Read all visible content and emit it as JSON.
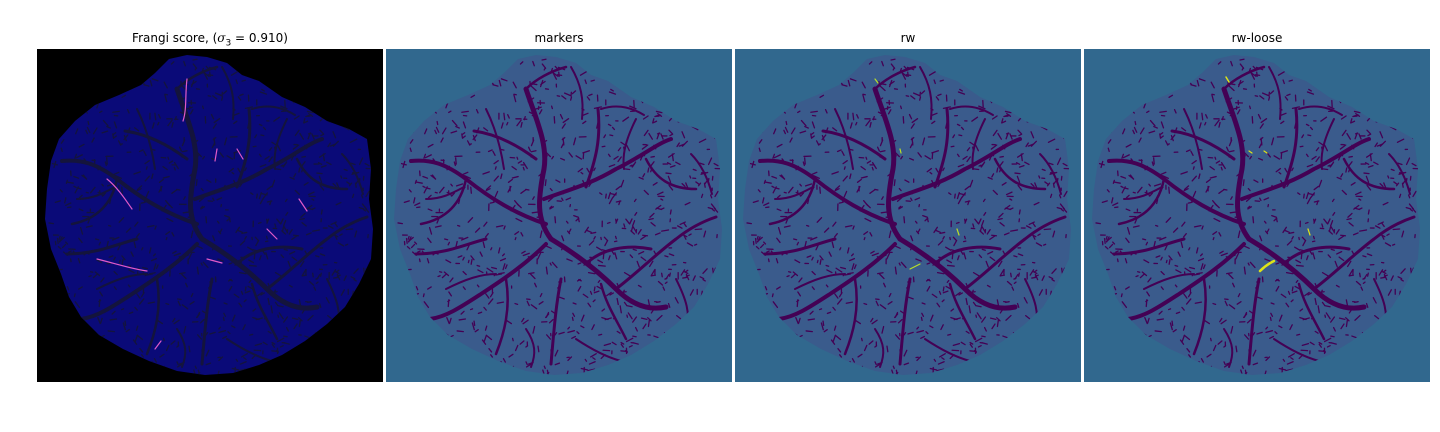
{
  "figure": {
    "panels": [
      {
        "title_prefix": "Frangi score, (",
        "title_sigma": "σ",
        "title_sub": "3",
        "title_suffix": " = 0.910)",
        "colormap": "magma",
        "background": "#000000",
        "body_fill": "#0a0a78",
        "vessel_color": "#14143c",
        "highlight_color": "#e05ac8"
      },
      {
        "title": "markers",
        "colormap": "viridis",
        "background": "#31688e",
        "body_fill": "#3a5b8c",
        "vessel_color": "#440154",
        "highlight_color": ""
      },
      {
        "title": "rw",
        "colormap": "viridis",
        "background": "#31688e",
        "body_fill": "#3a5b8c",
        "vessel_color": "#440154",
        "highlight_color": "#b8de29"
      },
      {
        "title": "rw-loose",
        "colormap": "viridis",
        "background": "#31688e",
        "body_fill": "#3a5b8c",
        "vessel_color": "#440154",
        "highlight_color": "#dde318"
      }
    ]
  }
}
